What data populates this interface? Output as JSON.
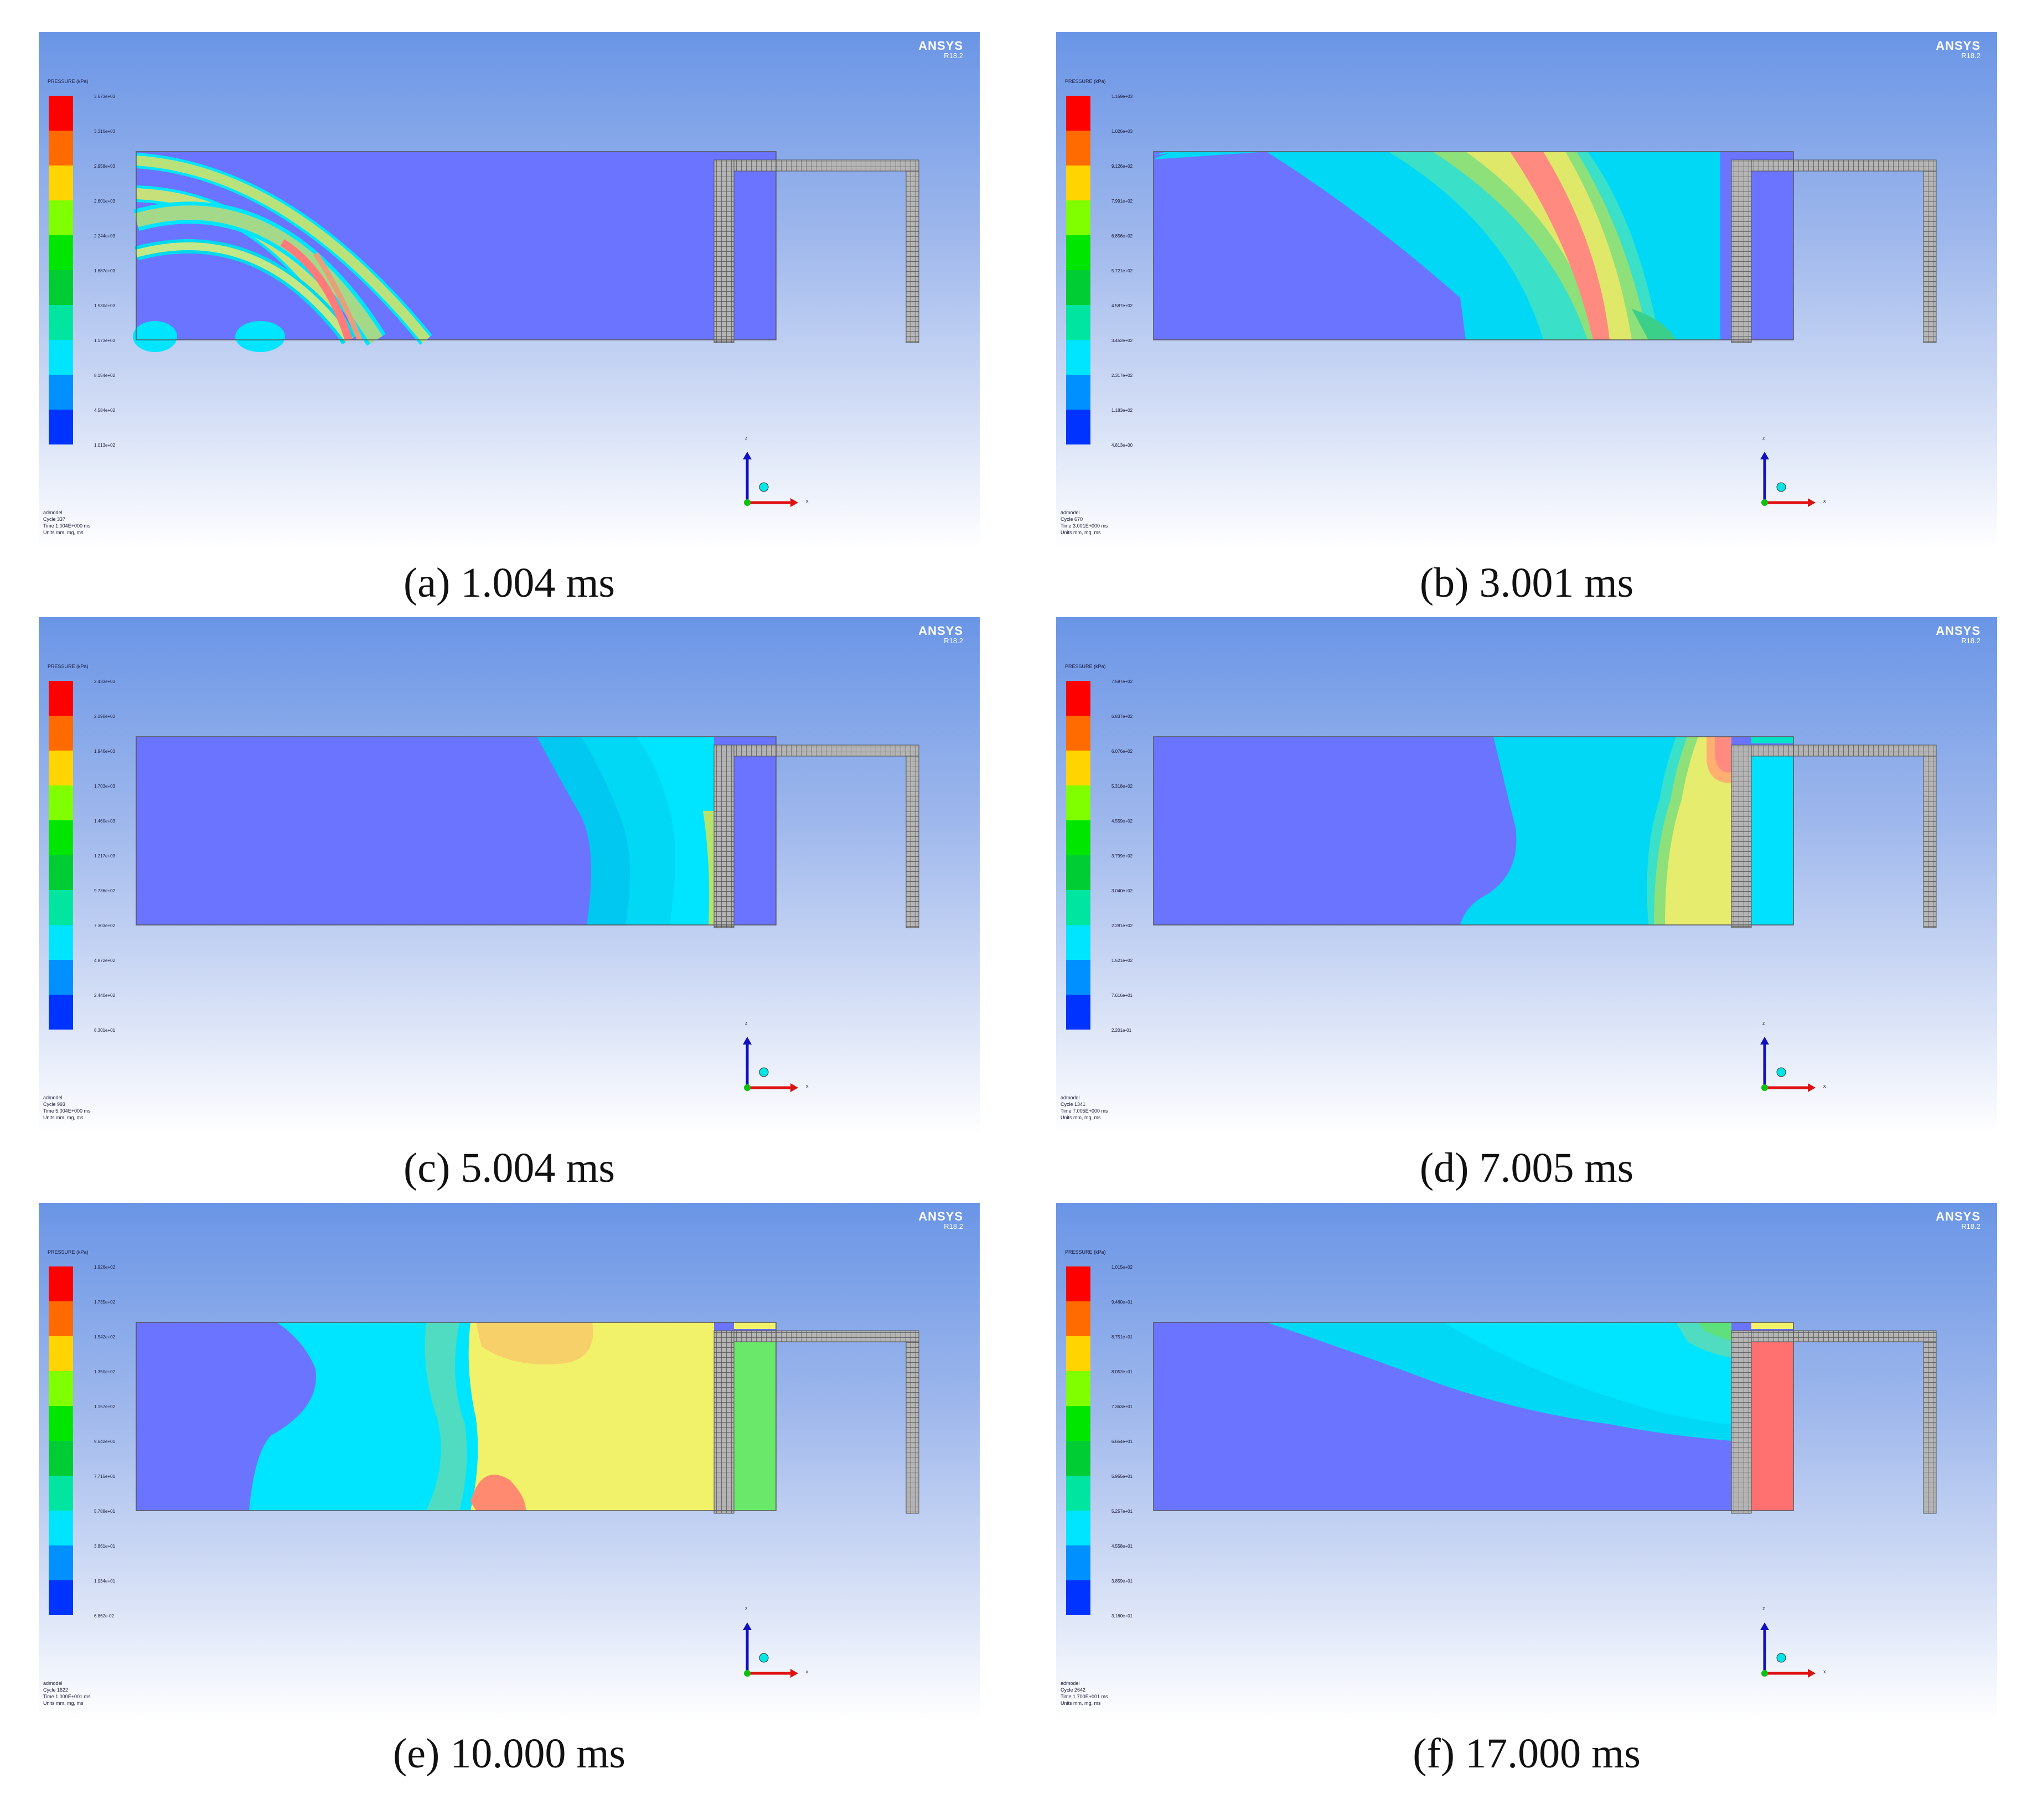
{
  "brand": {
    "name": "ANSYS",
    "version": "R18.2"
  },
  "legend_title": "PRESSURE (kPa)",
  "legend_colors": [
    "#ff0000",
    "#ff6b00",
    "#ffd400",
    "#7fff00",
    "#00e600",
    "#00cc33",
    "#00e6a0",
    "#00e5ff",
    "#0090ff",
    "#0033ff",
    "#0000e6"
  ],
  "triad": {
    "z": "z",
    "x": "x"
  },
  "panels": [
    {
      "caption": "(a) 1.004 ms",
      "legend": [
        "3.673e+03",
        "3.316e+03",
        "2.958e+03",
        "2.601e+03",
        "2.244e+03",
        "1.887e+03",
        "1.530e+03",
        "1.173e+03",
        "8.154e+02",
        "4.584e+02",
        "1.013e+02"
      ],
      "info": [
        "admodel",
        "Cycle 337",
        "Time 1.004E+000 ms",
        "Units mm, mg, ms"
      ]
    },
    {
      "caption": "(b) 3.001 ms",
      "legend": [
        "1.159e+03",
        "1.026e+03",
        "9.126e+02",
        "7.991e+02",
        "6.856e+02",
        "5.721e+02",
        "4.587e+02",
        "3.452e+02",
        "2.317e+02",
        "1.183e+02",
        "4.813e+00"
      ],
      "info": [
        "admodel",
        "Cycle 670",
        "Time 3.001E+000 ms",
        "Units mm, mg, ms"
      ]
    },
    {
      "caption": "(c) 5.004 ms",
      "legend": [
        "2.433e+03",
        "2.190e+03",
        "1.946e+03",
        "1.703e+03",
        "1.460e+03",
        "1.217e+03",
        "9.736e+02",
        "7.303e+02",
        "4.872e+02",
        "2.440e+02",
        "8.301e+01"
      ],
      "info": [
        "admodel",
        "Cycle 993",
        "Time 5.004E+000 ms",
        "Units mm, mg, ms"
      ]
    },
    {
      "caption": "(d) 7.005 ms",
      "legend": [
        "7.587e+02",
        "6.837e+02",
        "6.076e+02",
        "5.318e+02",
        "4.559e+02",
        "3.799e+02",
        "3.040e+02",
        "2.281e+02",
        "1.521e+02",
        "7.616e+01",
        "2.201e-01"
      ],
      "info": [
        "admodel",
        "Cycle 1341",
        "Time 7.005E+000 ms",
        "Units mm, mg, ms"
      ]
    },
    {
      "caption": "(e) 10.000 ms",
      "legend": [
        "1.926e+02",
        "1.735e+02",
        "1.542e+02",
        "1.350e+02",
        "1.157e+02",
        "9.642e+01",
        "7.715e+01",
        "5.788e+01",
        "3.861e+01",
        "1.934e+01",
        "6.862e-02"
      ],
      "info": [
        "admodel",
        "Cycle 1622",
        "Time 1.000E+001 ms",
        "Units mm, mg, ms"
      ]
    },
    {
      "caption": "(f) 17.000 ms",
      "legend": [
        "1.015e+02",
        "9.460e+01",
        "8.751e+01",
        "8.052e+01",
        "7.363e+01",
        "6.654e+01",
        "5.955e+01",
        "5.257e+01",
        "4.558e+01",
        "3.859e+01",
        "3.160e+01"
      ],
      "info": [
        "admodel",
        "Cycle 2642",
        "Time 1.700E+001 ms",
        "Units mm, mg, ms"
      ]
    }
  ]
}
